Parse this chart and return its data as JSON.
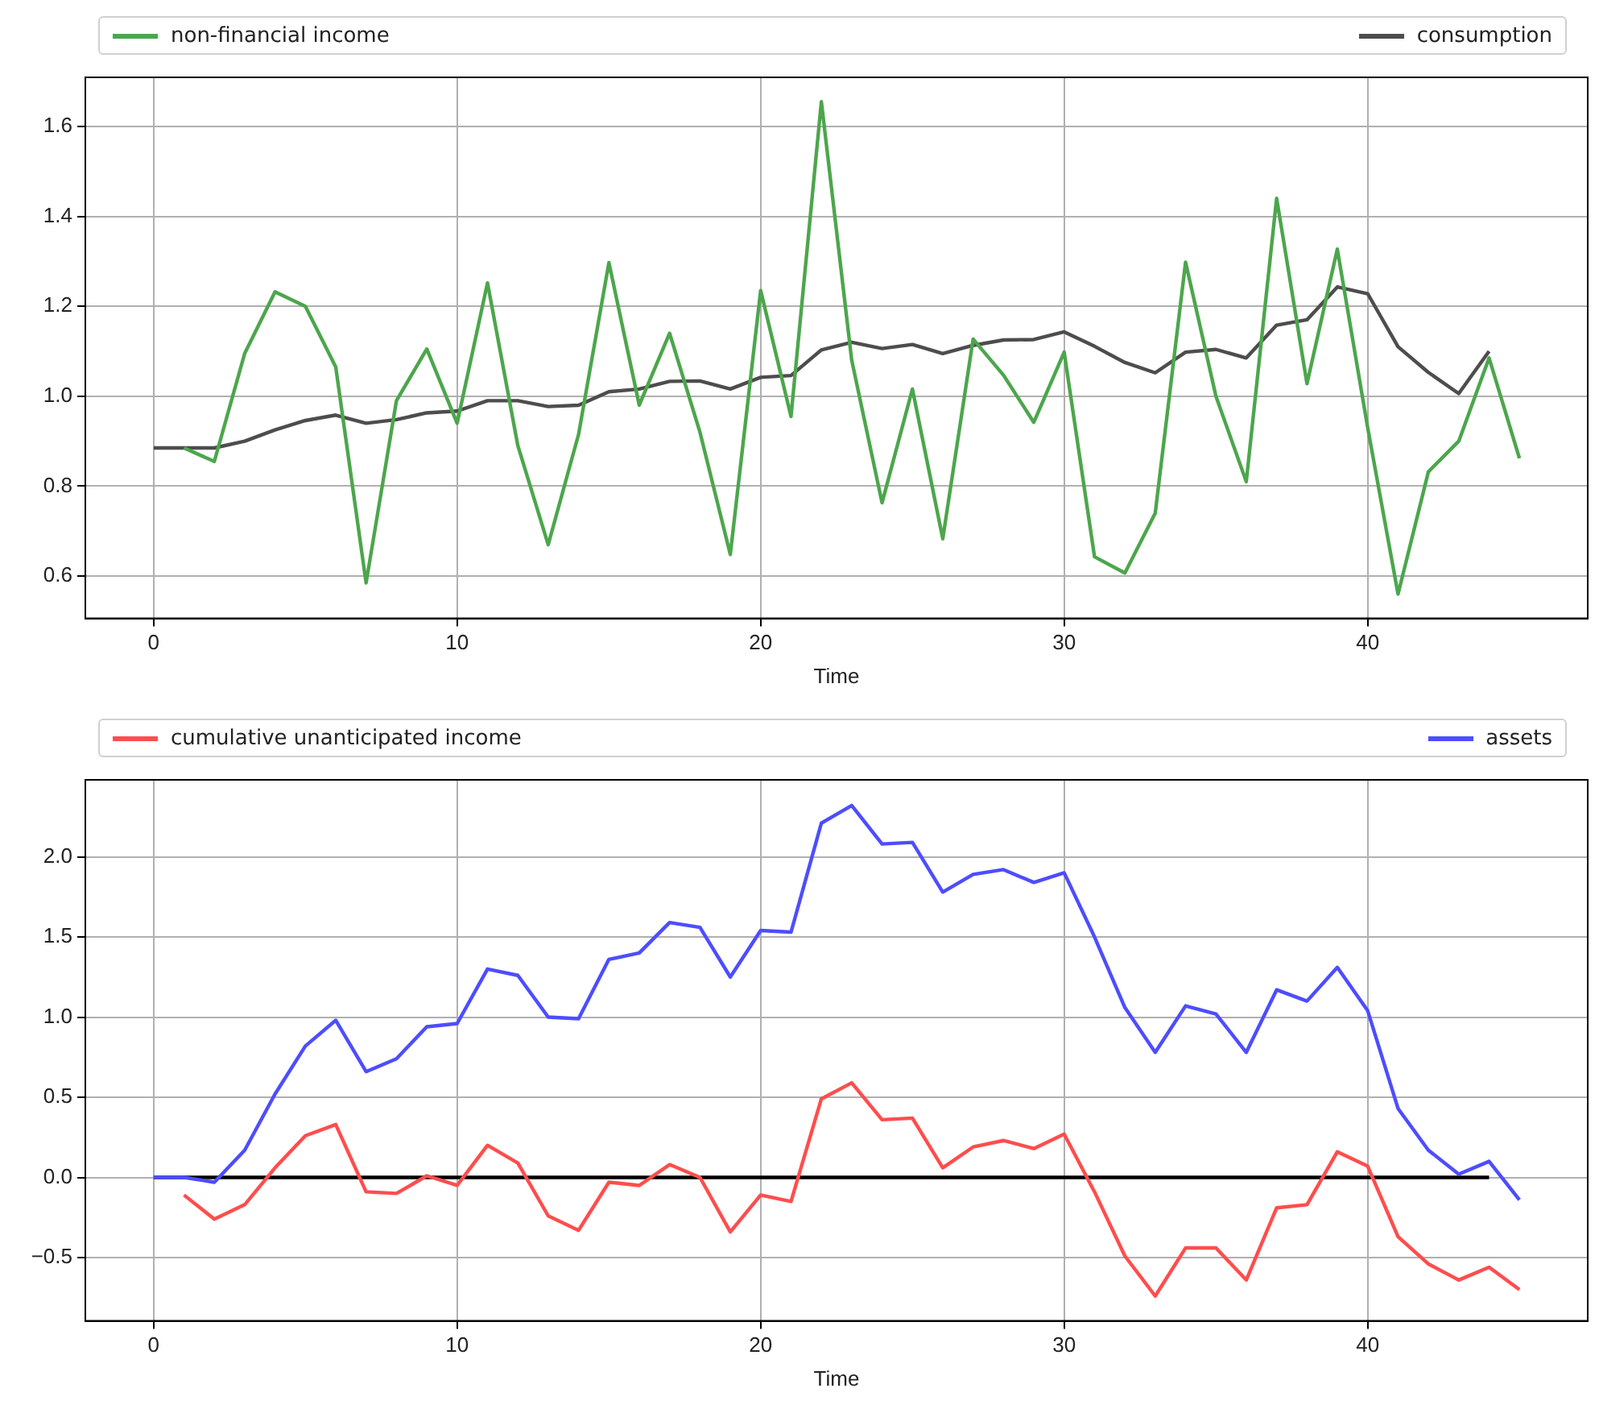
{
  "chart_data": [
    {
      "type": "line",
      "xlabel": "Time",
      "xlim": [
        -2.25,
        47.25
      ],
      "xticks": [
        0,
        10,
        20,
        30,
        40
      ],
      "ylim": [
        0.506,
        1.709
      ],
      "yticks": [
        {
          "value": 0.6,
          "label": "0.6"
        },
        {
          "value": 0.8,
          "label": "0.8"
        },
        {
          "value": 1.0,
          "label": "1.0"
        },
        {
          "value": 1.2,
          "label": "1.2"
        },
        {
          "value": 1.4,
          "label": "1.4"
        },
        {
          "value": 1.6,
          "label": "1.6"
        }
      ],
      "grid": true,
      "legend": "top",
      "line_style": "solid",
      "series": [
        {
          "name": "non-financial income",
          "color": "#4ca64c",
          "x": [
            1,
            2,
            3,
            4,
            5,
            6,
            7,
            8,
            9,
            10,
            11,
            12,
            13,
            14,
            15,
            16,
            17,
            18,
            19,
            20,
            21,
            22,
            23,
            24,
            25,
            26,
            27,
            28,
            29,
            30,
            31,
            32,
            33,
            34,
            35,
            36,
            37,
            38,
            39,
            40,
            41,
            42,
            43,
            44,
            45
          ],
          "values": [
            0.885,
            0.855,
            1.095,
            1.232,
            1.2,
            1.065,
            0.585,
            0.99,
            1.105,
            0.94,
            1.252,
            0.89,
            0.67,
            0.915,
            1.297,
            0.98,
            1.14,
            0.92,
            0.648,
            1.235,
            0.955,
            1.655,
            1.08,
            0.763,
            1.016,
            0.683,
            1.127,
            1.047,
            0.942,
            1.098,
            0.643,
            0.607,
            0.74,
            1.298,
            1.0,
            0.81,
            1.44,
            1.028,
            1.327,
            0.93,
            0.56,
            0.832,
            0.9,
            1.085,
            0.862
          ]
        },
        {
          "name": "consumption",
          "color": "#4d4d4d",
          "x": [
            0,
            1,
            2,
            3,
            4,
            5,
            6,
            7,
            8,
            9,
            10,
            11,
            12,
            13,
            14,
            15,
            16,
            17,
            18,
            19,
            20,
            21,
            22,
            23,
            24,
            25,
            26,
            27,
            28,
            29,
            30,
            31,
            32,
            33,
            34,
            35,
            36,
            37,
            38,
            39,
            40,
            41,
            42,
            43,
            44
          ],
          "values": [
            0.885,
            0.885,
            0.885,
            0.9,
            0.925,
            0.946,
            0.958,
            0.94,
            0.948,
            0.963,
            0.967,
            0.99,
            0.99,
            0.977,
            0.98,
            1.01,
            1.016,
            1.033,
            1.034,
            1.016,
            1.042,
            1.046,
            1.103,
            1.12,
            1.106,
            1.115,
            1.095,
            1.113,
            1.125,
            1.126,
            1.143,
            1.111,
            1.075,
            1.052,
            1.098,
            1.104,
            1.085,
            1.158,
            1.17,
            1.243,
            1.228,
            1.11,
            1.053,
            1.006,
            1.1
          ]
        }
      ]
    },
    {
      "type": "line",
      "xlabel": "Time",
      "xlim": [
        -2.25,
        47.25
      ],
      "xticks": [
        0,
        10,
        20,
        30,
        40
      ],
      "ylim": [
        -0.895,
        2.48
      ],
      "yticks": [
        {
          "value": -0.5,
          "label": "−0.5"
        },
        {
          "value": 0,
          "label": "0.0"
        },
        {
          "value": 0.5,
          "label": "0.5"
        },
        {
          "value": 1.0,
          "label": "1.0"
        },
        {
          "value": 1.5,
          "label": "1.5"
        },
        {
          "value": 2.0,
          "label": "2.0"
        }
      ],
      "grid": true,
      "legend": "top",
      "line_style": "solid",
      "series": [
        {
          "name": "cumulative unanticipated income",
          "color": "#ff4d4d",
          "x": [
            1,
            2,
            3,
            4,
            5,
            6,
            7,
            8,
            9,
            10,
            11,
            12,
            13,
            14,
            15,
            16,
            17,
            18,
            19,
            20,
            21,
            22,
            23,
            24,
            25,
            26,
            27,
            28,
            29,
            30,
            31,
            32,
            33,
            34,
            35,
            36,
            37,
            38,
            39,
            40,
            41,
            42,
            43,
            44,
            45
          ],
          "values": [
            -0.11,
            -0.26,
            -0.17,
            0.06,
            0.26,
            0.33,
            -0.09,
            -0.1,
            0.01,
            -0.05,
            0.2,
            0.09,
            -0.24,
            -0.33,
            -0.03,
            -0.05,
            0.08,
            0.0,
            -0.34,
            -0.11,
            -0.15,
            0.49,
            0.59,
            0.36,
            0.37,
            0.06,
            0.19,
            0.23,
            0.18,
            0.27,
            -0.09,
            -0.49,
            -0.74,
            -0.44,
            -0.44,
            -0.64,
            -0.19,
            -0.17,
            0.16,
            0.07,
            -0.37,
            -0.54,
            -0.64,
            -0.56,
            -0.7
          ]
        },
        {
          "name": "assets",
          "color": "#4d4dff",
          "x": [
            0,
            1,
            2,
            3,
            4,
            5,
            6,
            7,
            8,
            9,
            10,
            11,
            12,
            13,
            14,
            15,
            16,
            17,
            18,
            19,
            20,
            21,
            22,
            23,
            24,
            25,
            26,
            27,
            28,
            29,
            30,
            31,
            32,
            33,
            34,
            35,
            36,
            37,
            38,
            39,
            40,
            41,
            42,
            43,
            44,
            45
          ],
          "values": [
            0.0,
            0.0,
            -0.03,
            0.17,
            0.52,
            0.82,
            0.98,
            0.66,
            0.74,
            0.94,
            0.96,
            1.3,
            1.26,
            1.0,
            0.99,
            1.36,
            1.4,
            1.59,
            1.56,
            1.25,
            1.54,
            1.53,
            2.21,
            2.32,
            2.08,
            2.09,
            1.78,
            1.89,
            1.92,
            1.84,
            1.9,
            1.5,
            1.06,
            0.78,
            1.07,
            1.02,
            0.78,
            1.17,
            1.1,
            1.31,
            1.04,
            0.43,
            0.17,
            0.02,
            0.1,
            -0.14
          ]
        },
        {
          "color": "#000000",
          "x": [
            0,
            44
          ],
          "values": [
            0,
            0
          ]
        }
      ]
    }
  ]
}
